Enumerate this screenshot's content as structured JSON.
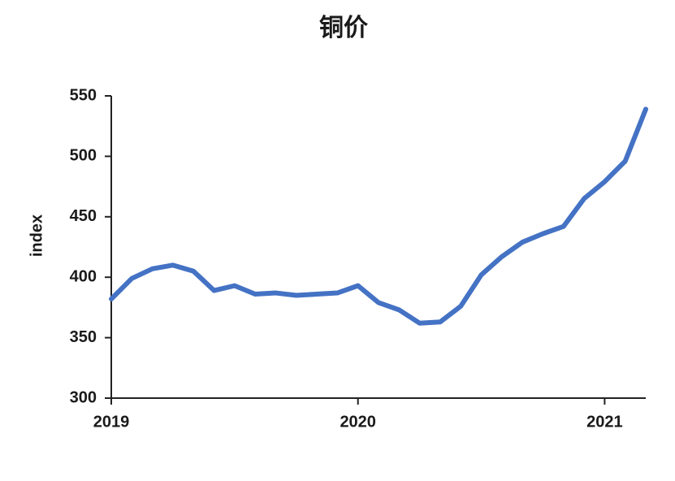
{
  "chart_data": {
    "type": "line",
    "title": "铜价",
    "y_label": "index",
    "x": [
      2019,
      2019.0833,
      2019.1667,
      2019.25,
      2019.3333,
      2019.4167,
      2019.5,
      2019.5833,
      2019.6667,
      2019.75,
      2019.8333,
      2019.9167,
      2020,
      2020.0833,
      2020.1667,
      2020.25,
      2020.3333,
      2020.4167,
      2020.5,
      2020.5833,
      2020.6667,
      2020.75,
      2020.8333,
      2020.9167,
      2021,
      2021.0833,
      2021.1667
    ],
    "series": [
      {
        "name": "index",
        "color": "#4472c4",
        "values": [
          382,
          399,
          407,
          410,
          405,
          389,
          393,
          386,
          387,
          385,
          386,
          387,
          393,
          379,
          373,
          362,
          363,
          376,
          402,
          417,
          429,
          436,
          442,
          465,
          479,
          496,
          539
        ]
      }
    ],
    "xlim": [
      2019,
      2021.1667
    ],
    "xticks": [
      2019,
      2020,
      2021
    ],
    "ylim": [
      300,
      550
    ],
    "yticks": [
      300,
      350,
      400,
      450,
      500,
      550
    ],
    "grid": false
  }
}
